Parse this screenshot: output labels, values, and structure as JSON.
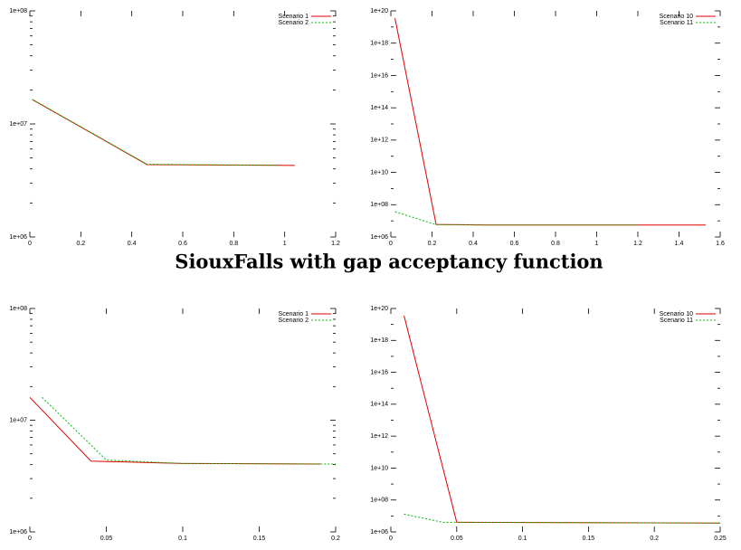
{
  "caption": "SiouxFalls with gap acceptancy function",
  "chart_data": [
    {
      "type": "line",
      "ylog": true,
      "legend": "upper right",
      "xlim": [
        0,
        1.2
      ],
      "xticks": [
        0,
        0.2,
        0.4,
        0.6,
        0.8,
        1,
        1.2
      ],
      "ylim": [
        1000000,
        100000000
      ],
      "yticks": [
        {
          "value": 1000000,
          "label": "1e+06"
        },
        {
          "value": 10000000,
          "label": "1e+07"
        },
        {
          "value": 100000000,
          "label": "1e+08"
        }
      ],
      "series": [
        {
          "name": "Scenario 1",
          "color": "#e00000",
          "dashed": false,
          "x": [
            0.01,
            0.46,
            1.04
          ],
          "values": [
            16400000,
            4370000,
            4300000
          ]
        },
        {
          "name": "Scenario 2",
          "color": "#00c000",
          "dashed": true,
          "x": [
            0.01,
            0.46,
            0.98
          ],
          "values": [
            16500000,
            4400000,
            4300000
          ]
        }
      ]
    },
    {
      "type": "line",
      "ylog": true,
      "legend": "upper right",
      "xlim": [
        0,
        1.6
      ],
      "xticks": [
        0,
        0.2,
        0.4,
        0.6,
        0.8,
        1,
        1.2,
        1.4,
        1.6
      ],
      "ylim": [
        1000000,
        1e+20
      ],
      "yticks": [
        {
          "value": 1000000,
          "label": "1e+06"
        },
        {
          "value": 100000000,
          "label": "1e+08"
        },
        {
          "value": 10000000000,
          "label": "1e+10"
        },
        {
          "value": 1000000000000,
          "label": "1e+12"
        },
        {
          "value": 100000000000000,
          "label": "1e+14"
        },
        {
          "value": 10000000000000000,
          "label": "1e+16"
        },
        {
          "value": 1000000000000000000,
          "label": "1e+18"
        },
        {
          "value": 1e+20,
          "label": "1e+20"
        }
      ],
      "series": [
        {
          "name": "Scenario 10",
          "color": "#e00000",
          "dashed": false,
          "x": [
            0.02,
            0.22,
            0.47,
            1.53
          ],
          "values": [
            3.5e+19,
            6000000,
            5500000,
            5500000
          ]
        },
        {
          "name": "Scenario 11",
          "color": "#00c000",
          "dashed": true,
          "x": [
            0.02,
            0.22,
            0.47,
            1.2
          ],
          "values": [
            37000000,
            5800000,
            5500000,
            5500000
          ]
        }
      ]
    },
    {
      "type": "line",
      "ylog": true,
      "legend": "upper right",
      "xlim": [
        0,
        0.2
      ],
      "xticks": [
        0,
        0.05,
        0.1,
        0.15,
        0.2
      ],
      "ylim": [
        1000000,
        100000000
      ],
      "yticks": [
        {
          "value": 1000000,
          "label": "1e+06"
        },
        {
          "value": 10000000,
          "label": "1e+07"
        },
        {
          "value": 100000000,
          "label": "1e+08"
        }
      ],
      "series": [
        {
          "name": "Scenario 1",
          "color": "#e00000",
          "dashed": false,
          "x": [
            0,
            0.04,
            0.1,
            0.19
          ],
          "values": [
            16000000,
            4300000,
            4100000,
            4050000
          ]
        },
        {
          "name": "Scenario 2",
          "color": "#00c000",
          "dashed": true,
          "x": [
            0.008,
            0.05,
            0.1,
            0.2
          ],
          "values": [
            16000000,
            4400000,
            4100000,
            4050000
          ]
        }
      ]
    },
    {
      "type": "line",
      "ylog": true,
      "legend": "upper right",
      "xlim": [
        0,
        0.25
      ],
      "xticks": [
        0,
        0.05,
        0.1,
        0.15,
        0.2,
        0.25
      ],
      "ylim": [
        1000000,
        1e+20
      ],
      "yticks": [
        {
          "value": 1000000,
          "label": "1e+06"
        },
        {
          "value": 100000000,
          "label": "1e+08"
        },
        {
          "value": 10000000000,
          "label": "1e+10"
        },
        {
          "value": 1000000000000,
          "label": "1e+12"
        },
        {
          "value": 100000000000000,
          "label": "1e+14"
        },
        {
          "value": 10000000000000000,
          "label": "1e+16"
        },
        {
          "value": 1000000000000000000,
          "label": "1e+18"
        },
        {
          "value": 1e+20,
          "label": "1e+20"
        }
      ],
      "series": [
        {
          "name": "Scenario 10",
          "color": "#e00000",
          "dashed": false,
          "x": [
            0.01,
            0.05,
            0.25
          ],
          "values": [
            3.5e+19,
            4000000,
            3600000
          ]
        },
        {
          "name": "Scenario 11",
          "color": "#00c000",
          "dashed": true,
          "x": [
            0.01,
            0.04,
            0.05,
            0.25
          ],
          "values": [
            13000000,
            3900000,
            4000000,
            3600000
          ]
        }
      ]
    }
  ]
}
